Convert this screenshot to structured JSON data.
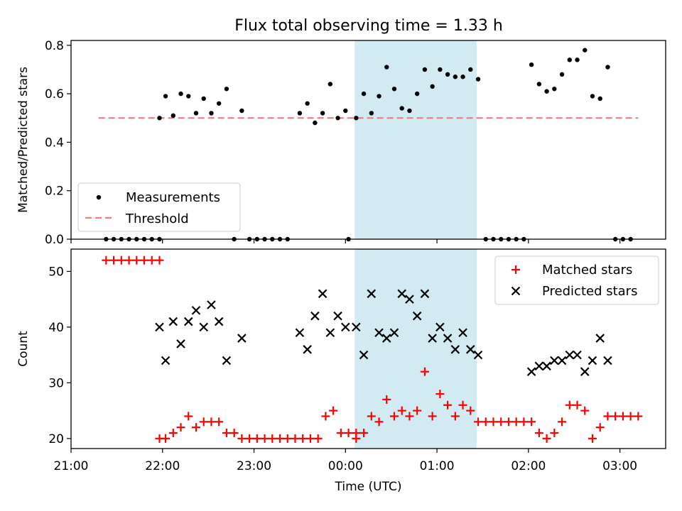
{
  "title": "Flux total observing time = 1.33 h",
  "colors": {
    "threshold": "#f08080",
    "highlight": "#add8e6",
    "matched": "#ff0000",
    "predicted": "#000000",
    "measurement": "#000000"
  },
  "chart_data": [
    {
      "type": "scatter",
      "ylabel": "Matched/Predicted stars",
      "xlabel": "",
      "ylim": [
        0,
        0.82
      ],
      "yticks": [
        0.0,
        0.2,
        0.4,
        0.6,
        0.8
      ],
      "ytick_labels": [
        "0.0",
        "0.2",
        "0.4",
        "0.6",
        "0.8"
      ],
      "x_range": [
        "21:00",
        "03:30"
      ],
      "highlight_span": {
        "from": "00:06",
        "to": "01:26"
      },
      "legend_position": "lower-left",
      "legend": [
        "Measurements",
        "Threshold"
      ],
      "threshold": {
        "name": "Threshold",
        "value": 0.5,
        "from": "21:18",
        "to": "03:12"
      },
      "series": [
        {
          "name": "Measurements",
          "points": [
            [
              "21:23",
              0
            ],
            [
              "21:28",
              0
            ],
            [
              "21:33",
              0
            ],
            [
              "21:38",
              0
            ],
            [
              "21:43",
              0
            ],
            [
              "21:48",
              0
            ],
            [
              "21:53",
              0
            ],
            [
              "21:58",
              0
            ],
            [
              "21:58",
              0.5
            ],
            [
              "22:02",
              0.59
            ],
            [
              "22:07",
              0.51
            ],
            [
              "22:12",
              0.6
            ],
            [
              "22:17",
              0.59
            ],
            [
              "22:22",
              0.52
            ],
            [
              "22:27",
              0.58
            ],
            [
              "22:32",
              0.52
            ],
            [
              "22:37",
              0.56
            ],
            [
              "22:42",
              0.62
            ],
            [
              "22:47",
              0
            ],
            [
              "22:52",
              0.53
            ],
            [
              "22:57",
              0
            ],
            [
              "23:02",
              0
            ],
            [
              "23:07",
              0
            ],
            [
              "23:12",
              0
            ],
            [
              "23:17",
              0
            ],
            [
              "23:22",
              0
            ],
            [
              "23:30",
              0.52
            ],
            [
              "23:35",
              0.56
            ],
            [
              "23:40",
              0.48
            ],
            [
              "23:45",
              0.52
            ],
            [
              "23:50",
              0.64
            ],
            [
              "23:55",
              0.5
            ],
            [
              "00:00",
              0.53
            ],
            [
              "00:02",
              0
            ],
            [
              "00:07",
              0.5
            ],
            [
              "00:12",
              0.6
            ],
            [
              "00:17",
              0.52
            ],
            [
              "00:22",
              0.59
            ],
            [
              "00:27",
              0.71
            ],
            [
              "00:32",
              0.62
            ],
            [
              "00:37",
              0.54
            ],
            [
              "00:42",
              0.53
            ],
            [
              "00:47",
              0.6
            ],
            [
              "00:52",
              0.7
            ],
            [
              "00:57",
              0.63
            ],
            [
              "01:02",
              0.7
            ],
            [
              "01:07",
              0.68
            ],
            [
              "01:12",
              0.67
            ],
            [
              "01:17",
              0.67
            ],
            [
              "01:22",
              0.7
            ],
            [
              "01:27",
              0.66
            ],
            [
              "01:32",
              0
            ],
            [
              "01:37",
              0
            ],
            [
              "01:42",
              0
            ],
            [
              "01:47",
              0
            ],
            [
              "01:52",
              0
            ],
            [
              "01:57",
              0
            ],
            [
              "02:02",
              0.72
            ],
            [
              "02:07",
              0.64
            ],
            [
              "02:12",
              0.61
            ],
            [
              "02:17",
              0.62
            ],
            [
              "02:22",
              0.68
            ],
            [
              "02:27",
              0.74
            ],
            [
              "02:32",
              0.74
            ],
            [
              "02:37",
              0.78
            ],
            [
              "02:42",
              0.59
            ],
            [
              "02:47",
              0.58
            ],
            [
              "02:52",
              0.71
            ],
            [
              "02:57",
              0
            ],
            [
              "03:02",
              0
            ],
            [
              "03:07",
              0
            ]
          ]
        }
      ]
    },
    {
      "type": "scatter",
      "ylabel": "Count",
      "xlabel": "Time (UTC)",
      "ylim": [
        18.2,
        54
      ],
      "yticks": [
        20,
        30,
        40,
        50
      ],
      "ytick_labels": [
        "20",
        "30",
        "40",
        "50"
      ],
      "xticks": [
        "21:00",
        "22:00",
        "23:00",
        "00:00",
        "01:00",
        "02:00",
        "03:00"
      ],
      "xtick_labels": [
        "21:00",
        "22:00",
        "23:00",
        "00:00",
        "01:00",
        "02:00",
        "03:00"
      ],
      "x_range": [
        "21:00",
        "03:30"
      ],
      "highlight_span": {
        "from": "00:06",
        "to": "01:26"
      },
      "legend_position": "top-right",
      "legend": [
        "Matched stars",
        "Predicted stars"
      ],
      "series": [
        {
          "name": "Matched stars",
          "marker": "plus",
          "points": [
            [
              "21:23",
              52
            ],
            [
              "21:28",
              52
            ],
            [
              "21:33",
              52
            ],
            [
              "21:38",
              52
            ],
            [
              "21:43",
              52
            ],
            [
              "21:48",
              52
            ],
            [
              "21:53",
              52
            ],
            [
              "21:58",
              52
            ],
            [
              "21:58",
              20
            ],
            [
              "22:02",
              20
            ],
            [
              "22:07",
              21
            ],
            [
              "22:12",
              22
            ],
            [
              "22:17",
              24
            ],
            [
              "22:22",
              22
            ],
            [
              "22:27",
              23
            ],
            [
              "22:32",
              23
            ],
            [
              "22:37",
              23
            ],
            [
              "22:42",
              21
            ],
            [
              "22:47",
              21
            ],
            [
              "22:52",
              20
            ],
            [
              "22:57",
              20
            ],
            [
              "23:02",
              20
            ],
            [
              "23:07",
              20
            ],
            [
              "23:12",
              20
            ],
            [
              "23:17",
              20
            ],
            [
              "23:22",
              20
            ],
            [
              "23:27",
              20
            ],
            [
              "23:32",
              20
            ],
            [
              "23:37",
              20
            ],
            [
              "23:42",
              20
            ],
            [
              "23:47",
              24
            ],
            [
              "23:52",
              25
            ],
            [
              "23:57",
              21
            ],
            [
              "00:02",
              21
            ],
            [
              "00:07",
              21
            ],
            [
              "00:07",
              20
            ],
            [
              "00:12",
              21
            ],
            [
              "00:17",
              24
            ],
            [
              "00:22",
              23
            ],
            [
              "00:27",
              27
            ],
            [
              "00:32",
              24
            ],
            [
              "00:37",
              25
            ],
            [
              "00:42",
              24
            ],
            [
              "00:47",
              25
            ],
            [
              "00:52",
              32
            ],
            [
              "00:57",
              24
            ],
            [
              "01:02",
              28
            ],
            [
              "01:07",
              26
            ],
            [
              "01:12",
              24
            ],
            [
              "01:17",
              26
            ],
            [
              "01:22",
              25
            ],
            [
              "01:27",
              23
            ],
            [
              "01:32",
              23
            ],
            [
              "01:37",
              23
            ],
            [
              "01:42",
              23
            ],
            [
              "01:47",
              23
            ],
            [
              "01:52",
              23
            ],
            [
              "01:57",
              23
            ],
            [
              "02:02",
              23
            ],
            [
              "02:07",
              21
            ],
            [
              "02:12",
              20
            ],
            [
              "02:17",
              21
            ],
            [
              "02:22",
              23
            ],
            [
              "02:27",
              26
            ],
            [
              "02:32",
              26
            ],
            [
              "02:37",
              25
            ],
            [
              "02:42",
              20
            ],
            [
              "02:47",
              22
            ],
            [
              "02:52",
              24
            ],
            [
              "02:57",
              24
            ],
            [
              "03:02",
              24
            ],
            [
              "03:07",
              24
            ],
            [
              "03:12",
              24
            ]
          ]
        },
        {
          "name": "Predicted stars",
          "marker": "x",
          "points": [
            [
              "21:58",
              40
            ],
            [
              "22:02",
              34
            ],
            [
              "22:07",
              41
            ],
            [
              "22:12",
              37
            ],
            [
              "22:17",
              41
            ],
            [
              "22:22",
              43
            ],
            [
              "22:27",
              40
            ],
            [
              "22:32",
              44
            ],
            [
              "22:37",
              41
            ],
            [
              "22:42",
              34
            ],
            [
              "22:52",
              38
            ],
            [
              "23:30",
              39
            ],
            [
              "23:35",
              36
            ],
            [
              "23:40",
              42
            ],
            [
              "23:45",
              46
            ],
            [
              "23:50",
              39
            ],
            [
              "23:55",
              42
            ],
            [
              "00:00",
              40
            ],
            [
              "00:07",
              40
            ],
            [
              "00:12",
              35
            ],
            [
              "00:17",
              46
            ],
            [
              "00:22",
              39
            ],
            [
              "00:27",
              38
            ],
            [
              "00:32",
              39
            ],
            [
              "00:37",
              46
            ],
            [
              "00:42",
              45
            ],
            [
              "00:47",
              42
            ],
            [
              "00:52",
              46
            ],
            [
              "00:57",
              38
            ],
            [
              "01:02",
              40
            ],
            [
              "01:07",
              38
            ],
            [
              "01:12",
              36
            ],
            [
              "01:17",
              39
            ],
            [
              "01:22",
              36
            ],
            [
              "01:27",
              35
            ],
            [
              "02:02",
              32
            ],
            [
              "02:07",
              33
            ],
            [
              "02:12",
              33
            ],
            [
              "02:17",
              34
            ],
            [
              "02:22",
              34
            ],
            [
              "02:27",
              35
            ],
            [
              "02:32",
              35
            ],
            [
              "02:37",
              32
            ],
            [
              "02:42",
              34
            ],
            [
              "02:47",
              38
            ],
            [
              "02:52",
              34
            ]
          ]
        }
      ]
    }
  ]
}
